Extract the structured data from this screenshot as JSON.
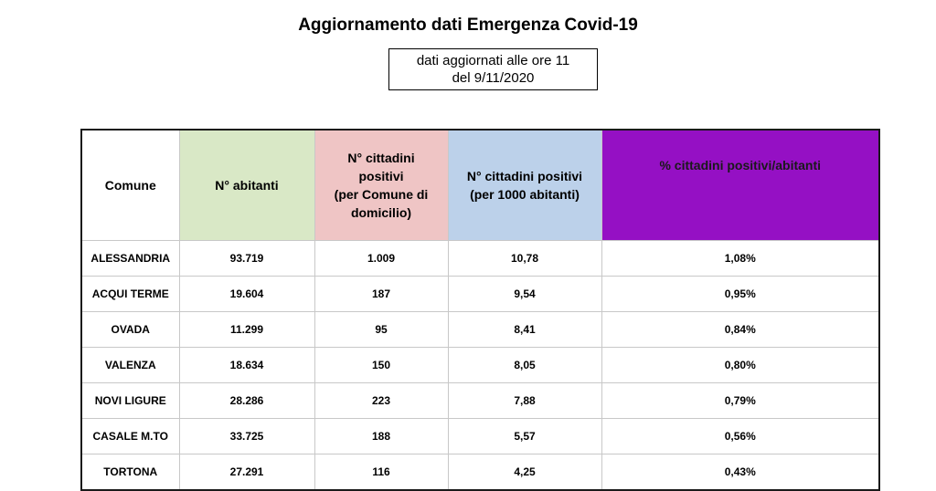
{
  "title": "Aggiornamento dati Emergenza Covid-19",
  "update_note": {
    "line1": "dati aggiornati alle ore 11",
    "line2": "del 9/11/2020"
  },
  "table": {
    "headers": {
      "comune": "Comune",
      "abitanti": "N° abitanti",
      "positivi_lines": [
        "N° cittadini",
        "positivi",
        "(per Comune di",
        "domicilio)"
      ],
      "per1000_lines": [
        "N° cittadini positivi",
        "(per 1000 abitanti)"
      ],
      "percentuale": "% cittadini positivi/abitanti"
    },
    "rows": [
      {
        "comune": "ALESSANDRIA",
        "abitanti": "93.719",
        "positivi": "1.009",
        "per1000": "10,78",
        "perc": "1,08%"
      },
      {
        "comune": "ACQUI TERME",
        "abitanti": "19.604",
        "positivi": "187",
        "per1000": "9,54",
        "perc": "0,95%"
      },
      {
        "comune": "OVADA",
        "abitanti": "11.299",
        "positivi": "95",
        "per1000": "8,41",
        "perc": "0,84%"
      },
      {
        "comune": "VALENZA",
        "abitanti": "18.634",
        "positivi": "150",
        "per1000": "8,05",
        "perc": "0,80%"
      },
      {
        "comune": "NOVI LIGURE",
        "abitanti": "28.286",
        "positivi": "223",
        "per1000": "7,88",
        "perc": "0,79%"
      },
      {
        "comune": "CASALE M.TO",
        "abitanti": "33.725",
        "positivi": "188",
        "per1000": "5,57",
        "perc": "0,56%"
      },
      {
        "comune": "TORTONA",
        "abitanti": "27.291",
        "positivi": "116",
        "per1000": "4,25",
        "perc": "0,43%"
      }
    ]
  },
  "colors": {
    "abitanti_header": "#d9e8c6",
    "positivi_header": "#efc5c5",
    "per1000_header": "#bcd1ea",
    "percentuale_header": "#9510c4"
  }
}
